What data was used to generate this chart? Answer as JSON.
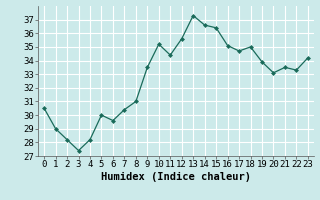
{
  "x": [
    0,
    1,
    2,
    3,
    4,
    5,
    6,
    7,
    8,
    9,
    10,
    11,
    12,
    13,
    14,
    15,
    16,
    17,
    18,
    19,
    20,
    21,
    22,
    23
  ],
  "y": [
    30.5,
    29.0,
    28.2,
    27.4,
    28.2,
    30.0,
    29.6,
    30.4,
    31.0,
    33.5,
    35.2,
    34.4,
    35.6,
    37.3,
    36.6,
    36.4,
    35.1,
    34.7,
    35.0,
    33.9,
    33.1,
    33.5,
    33.3,
    34.2
  ],
  "xlabel": "Humidex (Indice chaleur)",
  "ylim": [
    27,
    38
  ],
  "yticks": [
    27,
    28,
    29,
    30,
    31,
    32,
    33,
    34,
    35,
    36,
    37
  ],
  "xticks": [
    0,
    1,
    2,
    3,
    4,
    5,
    6,
    7,
    8,
    9,
    10,
    11,
    12,
    13,
    14,
    15,
    16,
    17,
    18,
    19,
    20,
    21,
    22,
    23
  ],
  "line_color": "#1a6b5a",
  "marker": "D",
  "marker_size": 2,
  "bg_color": "#cceaea",
  "grid_color": "#ffffff",
  "tick_fontsize": 6.5,
  "xlabel_fontsize": 7.5
}
